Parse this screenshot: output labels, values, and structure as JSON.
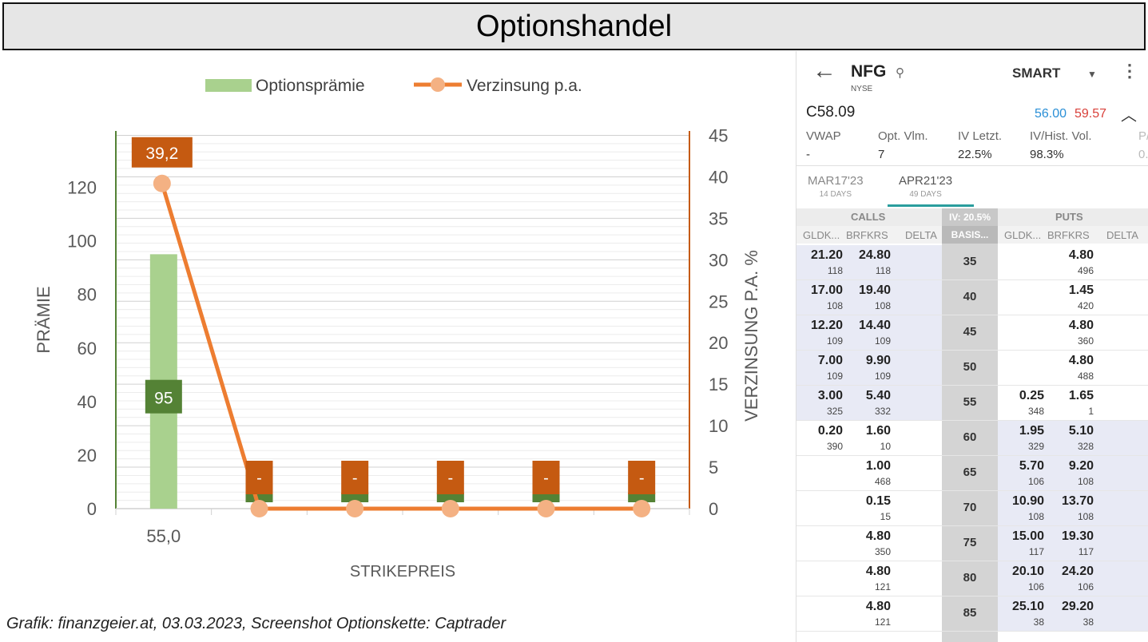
{
  "header": {
    "title": "Optionshandel"
  },
  "caption": "Grafik: finanzgeier.at, 03.03.2023, Screenshot Optionskette: Captrader",
  "chart_data": {
    "type": "bar+line",
    "categories": [
      "55,0",
      "",
      "",
      "",
      "",
      ""
    ],
    "series": [
      {
        "name": "Optionsprämie",
        "type": "bar",
        "axis": "left",
        "color": "#a9d18e",
        "values": [
          95,
          0,
          0,
          0,
          0,
          0
        ],
        "labels": [
          "95",
          "",
          "",
          "",
          "",
          ""
        ],
        "label_color": "#548235"
      },
      {
        "name": "Verzinsung p.a.",
        "type": "line",
        "axis": "right",
        "color": "#ed7d31",
        "marker_color": "#f4b183",
        "values": [
          39.2,
          0,
          0,
          0,
          0,
          0
        ],
        "labels": [
          "39,2",
          "-",
          "-",
          "-",
          "-",
          "-"
        ],
        "label_color": "#c55a11"
      }
    ],
    "xlabel": "STRIKEPREIS",
    "ylabel": "PRÄMIE",
    "y2label": "VERZINSUNG P.A. %",
    "ylim": [
      0,
      130
    ],
    "y2lim": [
      0,
      45
    ],
    "yticks": [
      0,
      20,
      40,
      60,
      80,
      100,
      120
    ],
    "y2ticks": [
      0,
      5,
      10,
      15,
      20,
      25,
      30,
      35,
      40,
      45
    ],
    "grid": true,
    "legend": "top"
  },
  "phone": {
    "symbol": "NFG",
    "exchange": "NYSE",
    "route": "SMART",
    "contract": "C58.09",
    "bid": "56.00",
    "ask": "59.57",
    "stats": [
      {
        "label": "VWAP",
        "value": "-"
      },
      {
        "label": "Opt. Vlm.",
        "value": "7"
      },
      {
        "label": "IV Letzt.",
        "value": "22.5%"
      },
      {
        "label": "IV/Hist. Vol.",
        "value": "98.3%"
      },
      {
        "label": "P/",
        "value": "0."
      }
    ],
    "expiries": [
      {
        "label": "MAR17'23",
        "days": "14 DAYS",
        "active": false
      },
      {
        "label": "APR21'23",
        "days": "49 DAYS",
        "active": true
      }
    ],
    "calls_label": "CALLS",
    "puts_label": "PUTS",
    "iv_label": "IV: 20.5%",
    "col_headers": {
      "bid": "GLDK...",
      "ask": "BRFKRS",
      "delta": "DELTA",
      "basis": "BASIS..."
    },
    "rows": [
      {
        "strike": "35",
        "c_bid": "21.20",
        "c_bid_sz": "118",
        "c_ask": "24.80",
        "c_ask_sz": "118",
        "p_bid": "",
        "p_bid_sz": "",
        "p_ask": "4.80",
        "p_ask_sz": "496",
        "call_itm": true,
        "put_itm": false
      },
      {
        "strike": "40",
        "c_bid": "17.00",
        "c_bid_sz": "108",
        "c_ask": "19.40",
        "c_ask_sz": "108",
        "p_bid": "",
        "p_bid_sz": "",
        "p_ask": "1.45",
        "p_ask_sz": "420",
        "call_itm": true,
        "put_itm": false
      },
      {
        "strike": "45",
        "c_bid": "12.20",
        "c_bid_sz": "109",
        "c_ask": "14.40",
        "c_ask_sz": "109",
        "p_bid": "",
        "p_bid_sz": "",
        "p_ask": "4.80",
        "p_ask_sz": "360",
        "call_itm": true,
        "put_itm": false
      },
      {
        "strike": "50",
        "c_bid": "7.00",
        "c_bid_sz": "109",
        "c_ask": "9.90",
        "c_ask_sz": "109",
        "p_bid": "",
        "p_bid_sz": "",
        "p_ask": "4.80",
        "p_ask_sz": "488",
        "call_itm": true,
        "put_itm": false
      },
      {
        "strike": "55",
        "c_bid": "3.00",
        "c_bid_sz": "325",
        "c_ask": "5.40",
        "c_ask_sz": "332",
        "p_bid": "0.25",
        "p_bid_sz": "348",
        "p_ask": "1.65",
        "p_ask_sz": "1",
        "call_itm": true,
        "put_itm": false
      },
      {
        "strike": "60",
        "c_bid": "0.20",
        "c_bid_sz": "390",
        "c_ask": "1.60",
        "c_ask_sz": "10",
        "p_bid": "1.95",
        "p_bid_sz": "329",
        "p_ask": "5.10",
        "p_ask_sz": "328",
        "call_itm": false,
        "put_itm": true
      },
      {
        "strike": "65",
        "c_bid": "",
        "c_bid_sz": "",
        "c_ask": "1.00",
        "c_ask_sz": "468",
        "p_bid": "5.70",
        "p_bid_sz": "106",
        "p_ask": "9.20",
        "p_ask_sz": "108",
        "call_itm": false,
        "put_itm": true
      },
      {
        "strike": "70",
        "c_bid": "",
        "c_bid_sz": "",
        "c_ask": "0.15",
        "c_ask_sz": "15",
        "p_bid": "10.90",
        "p_bid_sz": "108",
        "p_ask": "13.70",
        "p_ask_sz": "108",
        "call_itm": false,
        "put_itm": true
      },
      {
        "strike": "75",
        "c_bid": "",
        "c_bid_sz": "",
        "c_ask": "4.80",
        "c_ask_sz": "350",
        "p_bid": "15.00",
        "p_bid_sz": "117",
        "p_ask": "19.30",
        "p_ask_sz": "117",
        "call_itm": false,
        "put_itm": true
      },
      {
        "strike": "80",
        "c_bid": "",
        "c_bid_sz": "",
        "c_ask": "4.80",
        "c_ask_sz": "121",
        "p_bid": "20.10",
        "p_bid_sz": "106",
        "p_ask": "24.20",
        "p_ask_sz": "106",
        "call_itm": false,
        "put_itm": true
      },
      {
        "strike": "85",
        "c_bid": "",
        "c_bid_sz": "",
        "c_ask": "4.80",
        "c_ask_sz": "121",
        "p_bid": "25.10",
        "p_bid_sz": "38",
        "p_ask": "29.20",
        "p_ask_sz": "38",
        "call_itm": false,
        "put_itm": true
      }
    ],
    "icons": {
      "back": "arrow-left-icon",
      "search": "search-icon",
      "dropdown": "chevron-down-icon",
      "menu": "kebab-menu-icon",
      "collapse": "chevron-up-icon"
    }
  }
}
